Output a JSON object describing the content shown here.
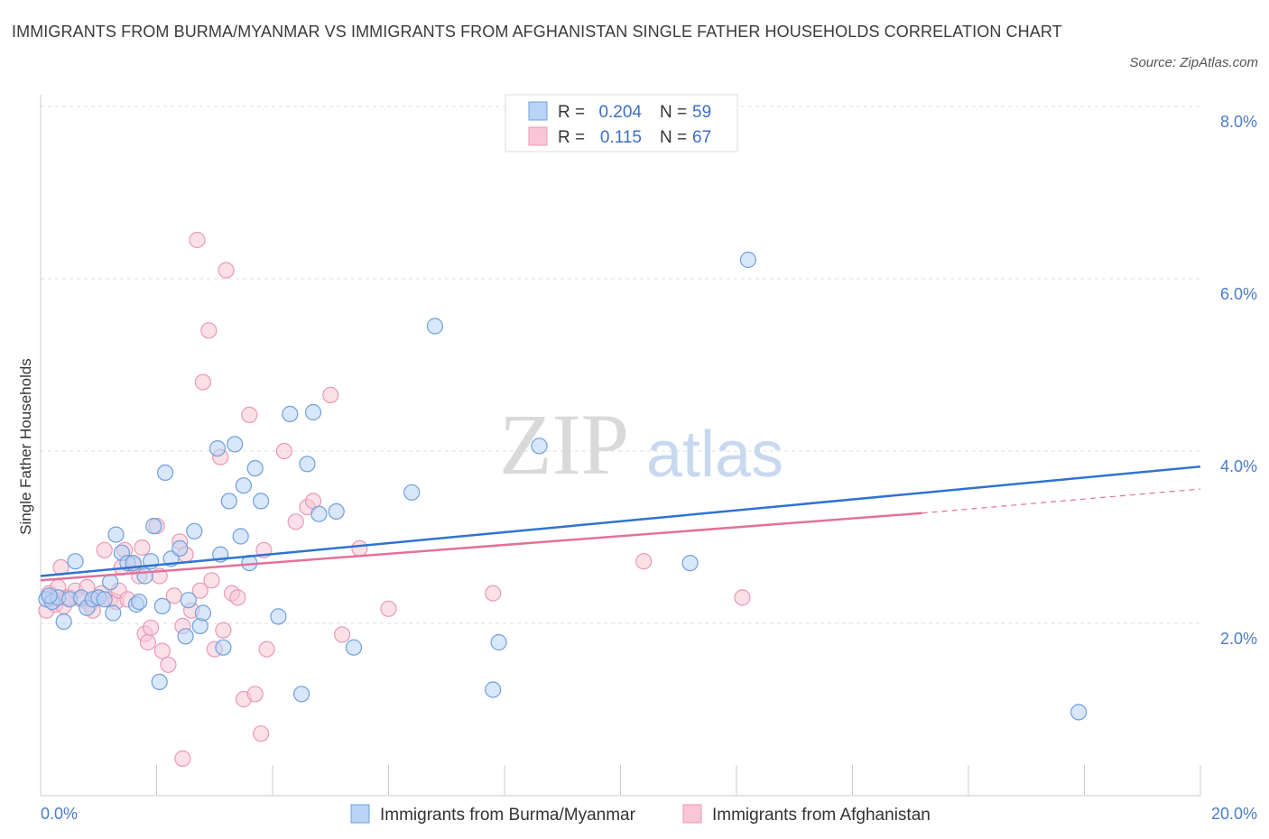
{
  "header": {
    "title": "IMMIGRANTS FROM BURMA/MYANMAR VS IMMIGRANTS FROM AFGHANISTAN SINGLE FATHER HOUSEHOLDS CORRELATION CHART",
    "source": "Source: ZipAtlas.com"
  },
  "watermark": {
    "zip": "ZIP",
    "atlas": "atlas"
  },
  "legend": {
    "rows": [
      {
        "r_label": "R =",
        "r_value": "0.204",
        "n_label": "N =",
        "n_value": "59"
      },
      {
        "r_label": "R =",
        "r_value": "0.115",
        "n_label": "N =",
        "n_value": "67"
      }
    ]
  },
  "colors": {
    "burma_fill": "#b8d3f5",
    "burma_stroke": "#6f9fdc",
    "burma_line": "#2f73d0",
    "afgh_fill": "#f8c6d6",
    "afgh_stroke": "#e99ab3",
    "afgh_line": "#e2729a",
    "axis_text": "#4a7cc9",
    "grid": "#dddddd"
  },
  "chart_data": {
    "type": "scatter",
    "title": "IMMIGRANTS FROM BURMA/MYANMAR VS IMMIGRANTS FROM AFGHANISTAN SINGLE FATHER HOUSEHOLDS CORRELATION CHART",
    "xlabel": "",
    "ylabel": "Single Father Households",
    "xlim": [
      0,
      20
    ],
    "ylim": [
      0,
      8
    ],
    "x_tick_labels": [
      "0.0%",
      "20.0%"
    ],
    "y_ticks": [
      2,
      4,
      6,
      8
    ],
    "y_tick_labels": [
      "2.0%",
      "4.0%",
      "6.0%",
      "8.0%"
    ],
    "grid": true,
    "legend_position": "top-center",
    "series": [
      {
        "name": "Immigrants from Burma/Myanmar",
        "color": "#b8d3f5",
        "trend": {
          "x": [
            0,
            20
          ],
          "y": [
            2.55,
            3.82
          ]
        },
        "points": [
          [
            0.1,
            2.28
          ],
          [
            0.2,
            2.25
          ],
          [
            0.3,
            2.3
          ],
          [
            0.4,
            2.02
          ],
          [
            0.5,
            2.28
          ],
          [
            0.6,
            2.72
          ],
          [
            0.7,
            2.3
          ],
          [
            0.8,
            2.18
          ],
          [
            0.9,
            2.28
          ],
          [
            1.0,
            2.3
          ],
          [
            1.1,
            2.28
          ],
          [
            1.2,
            2.48
          ],
          [
            1.25,
            2.12
          ],
          [
            1.3,
            3.03
          ],
          [
            1.4,
            2.82
          ],
          [
            1.5,
            2.7
          ],
          [
            1.6,
            2.7
          ],
          [
            1.8,
            2.55
          ],
          [
            1.65,
            2.22
          ],
          [
            1.7,
            2.25
          ],
          [
            1.9,
            2.72
          ],
          [
            1.95,
            3.13
          ],
          [
            2.05,
            1.32
          ],
          [
            2.1,
            2.2
          ],
          [
            2.15,
            3.75
          ],
          [
            2.25,
            2.75
          ],
          [
            2.4,
            2.87
          ],
          [
            2.5,
            1.85
          ],
          [
            2.55,
            2.27
          ],
          [
            2.65,
            3.07
          ],
          [
            2.75,
            1.97
          ],
          [
            2.8,
            2.12
          ],
          [
            3.05,
            4.03
          ],
          [
            3.1,
            2.8
          ],
          [
            3.15,
            1.72
          ],
          [
            3.25,
            3.42
          ],
          [
            3.35,
            4.08
          ],
          [
            3.45,
            3.01
          ],
          [
            3.5,
            3.6
          ],
          [
            3.6,
            2.7
          ],
          [
            3.7,
            3.8
          ],
          [
            3.8,
            3.42
          ],
          [
            4.1,
            2.08
          ],
          [
            4.3,
            4.43
          ],
          [
            4.5,
            1.18
          ],
          [
            4.6,
            3.85
          ],
          [
            4.7,
            4.45
          ],
          [
            4.8,
            3.27
          ],
          [
            5.1,
            3.3
          ],
          [
            5.4,
            1.72
          ],
          [
            6.4,
            3.52
          ],
          [
            6.8,
            5.45
          ],
          [
            7.8,
            1.23
          ],
          [
            7.9,
            1.78
          ],
          [
            8.6,
            4.06
          ],
          [
            11.2,
            2.7
          ],
          [
            12.2,
            6.22
          ],
          [
            17.9,
            0.97
          ],
          [
            0.15,
            2.32
          ]
        ]
      },
      {
        "name": "Immigrants from Afghanistan",
        "color": "#f8c6d6",
        "trend": {
          "x": [
            0,
            15.2
          ],
          "y": [
            2.5,
            3.28
          ]
        },
        "trend_dashed": {
          "x": [
            15.2,
            20
          ],
          "y": [
            3.28,
            3.56
          ]
        },
        "points": [
          [
            0.1,
            2.15
          ],
          [
            0.15,
            2.35
          ],
          [
            0.2,
            2.3
          ],
          [
            0.25,
            2.22
          ],
          [
            0.3,
            2.42
          ],
          [
            0.35,
            2.65
          ],
          [
            0.4,
            2.2
          ],
          [
            0.45,
            2.3
          ],
          [
            0.5,
            2.3
          ],
          [
            0.6,
            2.38
          ],
          [
            0.7,
            2.28
          ],
          [
            0.8,
            2.42
          ],
          [
            0.85,
            2.22
          ],
          [
            0.9,
            2.15
          ],
          [
            1.0,
            2.3
          ],
          [
            1.05,
            2.35
          ],
          [
            1.1,
            2.85
          ],
          [
            1.2,
            2.28
          ],
          [
            1.3,
            2.25
          ],
          [
            1.35,
            2.38
          ],
          [
            1.4,
            2.65
          ],
          [
            1.45,
            2.85
          ],
          [
            1.5,
            2.28
          ],
          [
            1.6,
            2.68
          ],
          [
            1.7,
            2.55
          ],
          [
            1.75,
            2.88
          ],
          [
            1.8,
            1.88
          ],
          [
            1.85,
            1.78
          ],
          [
            1.9,
            1.95
          ],
          [
            2.0,
            3.13
          ],
          [
            2.05,
            2.55
          ],
          [
            2.1,
            1.68
          ],
          [
            2.2,
            1.52
          ],
          [
            2.3,
            2.32
          ],
          [
            2.4,
            2.95
          ],
          [
            2.45,
            1.97
          ],
          [
            2.5,
            2.8
          ],
          [
            2.6,
            2.15
          ],
          [
            2.7,
            6.45
          ],
          [
            2.75,
            2.38
          ],
          [
            2.8,
            4.8
          ],
          [
            2.9,
            5.4
          ],
          [
            2.95,
            2.5
          ],
          [
            3.0,
            1.7
          ],
          [
            3.1,
            3.93
          ],
          [
            3.15,
            1.92
          ],
          [
            3.2,
            6.1
          ],
          [
            3.3,
            2.35
          ],
          [
            3.4,
            2.3
          ],
          [
            3.5,
            1.12
          ],
          [
            3.6,
            4.42
          ],
          [
            3.7,
            1.18
          ],
          [
            3.8,
            0.72
          ],
          [
            3.85,
            2.85
          ],
          [
            3.9,
            1.7
          ],
          [
            4.2,
            4.0
          ],
          [
            4.4,
            3.18
          ],
          [
            4.6,
            3.35
          ],
          [
            4.7,
            3.42
          ],
          [
            5.0,
            4.65
          ],
          [
            5.2,
            1.87
          ],
          [
            5.5,
            2.87
          ],
          [
            6.0,
            2.17
          ],
          [
            7.8,
            2.35
          ],
          [
            10.4,
            2.72
          ],
          [
            12.1,
            2.3
          ],
          [
            2.45,
            0.43
          ]
        ]
      }
    ]
  }
}
